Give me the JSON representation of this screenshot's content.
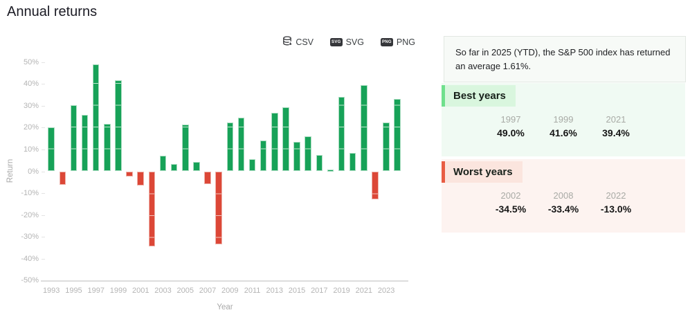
{
  "page": {
    "title": "Annual returns"
  },
  "toolbar": {
    "csv_label": "CSV",
    "svg_label": "SVG",
    "png_label": "PNG"
  },
  "chart_data": {
    "type": "bar",
    "title": "Annual returns",
    "xlabel": "Year",
    "ylabel": "Return",
    "ylim": [
      -50,
      50
    ],
    "grid": false,
    "y_ticks": [
      50,
      40,
      30,
      20,
      10,
      0,
      -10,
      -20,
      -30,
      -40,
      -50
    ],
    "y_tick_suffix": "%",
    "x": [
      1993,
      1994,
      1995,
      1996,
      1997,
      1998,
      1999,
      2000,
      2001,
      2002,
      2003,
      2004,
      2005,
      2006,
      2007,
      2008,
      2009,
      2010,
      2011,
      2012,
      2013,
      2014,
      2015,
      2016,
      2017,
      2018,
      2019,
      2020,
      2021,
      2022,
      2023,
      2024
    ],
    "values": [
      20.3,
      -6.3,
      30.3,
      25.8,
      49.0,
      21.6,
      41.6,
      -2.3,
      -6.6,
      -34.5,
      7.0,
      3.2,
      21.4,
      4.2,
      -5.8,
      -33.4,
      22.4,
      24.5,
      5.6,
      14.0,
      26.8,
      29.5,
      13.4,
      16.0,
      7.4,
      0.3,
      34.2,
      8.3,
      39.4,
      -13.0,
      22.3,
      33.2
    ],
    "x_tick_labels": [
      1993,
      1995,
      1997,
      1999,
      2001,
      2003,
      2005,
      2007,
      2009,
      2011,
      2013,
      2015,
      2017,
      2019,
      2021,
      2023
    ],
    "positive_color": "#17a258",
    "negative_color": "#dc4737"
  },
  "sidebar": {
    "ytd_note": "So far in 2025 (YTD), the S&P 500 index has returned an average 1.61%.",
    "best_years": {
      "label": "Best years",
      "accent_color": "#6fe08d",
      "items": [
        {
          "year": "1997",
          "value": "49.0%"
        },
        {
          "year": "1999",
          "value": "41.6%"
        },
        {
          "year": "2021",
          "value": "39.4%"
        }
      ]
    },
    "worst_years": {
      "label": "Worst years",
      "accent_color": "#e85c43",
      "items": [
        {
          "year": "2002",
          "value": "-34.5%"
        },
        {
          "year": "2008",
          "value": "-33.4%"
        },
        {
          "year": "2022",
          "value": "-13.0%"
        }
      ]
    }
  }
}
